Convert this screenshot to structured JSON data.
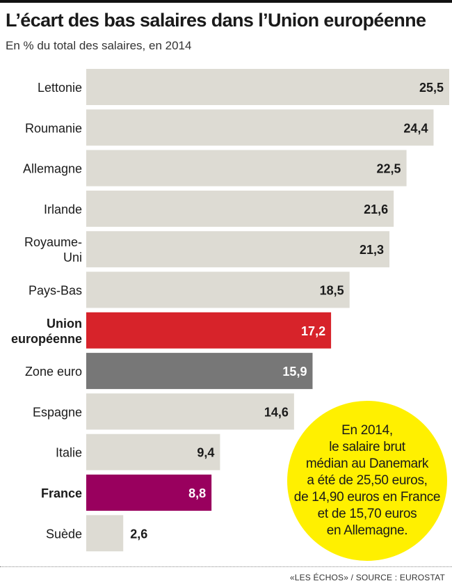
{
  "title": "L’écart des bas salaires dans l’Union européenne",
  "subtitle": "En % du total des salaires, en 2014",
  "chart_data": {
    "type": "bar",
    "orientation": "horizontal",
    "title": "L’écart des bas salaires dans l’Union européenne",
    "subtitle": "En % du total des salaires, en 2014",
    "categories": [
      {
        "lines": [
          "Lettonie"
        ],
        "bold": false
      },
      {
        "lines": [
          "Roumanie"
        ],
        "bold": false
      },
      {
        "lines": [
          "Allemagne"
        ],
        "bold": false
      },
      {
        "lines": [
          "Irlande"
        ],
        "bold": false
      },
      {
        "lines": [
          "Royaume-",
          "Uni"
        ],
        "bold": false
      },
      {
        "lines": [
          "Pays-Bas"
        ],
        "bold": false
      },
      {
        "lines": [
          "Union",
          "européenne"
        ],
        "bold": true
      },
      {
        "lines": [
          "Zone euro"
        ],
        "bold": false
      },
      {
        "lines": [
          "Espagne"
        ],
        "bold": false
      },
      {
        "lines": [
          "Italie"
        ],
        "bold": false
      },
      {
        "lines": [
          "France"
        ],
        "bold": true
      },
      {
        "lines": [
          "Suède"
        ],
        "bold": false
      }
    ],
    "values": [
      25.5,
      24.4,
      22.5,
      21.6,
      21.3,
      18.5,
      17.2,
      15.9,
      14.6,
      9.4,
      8.8,
      2.6
    ],
    "value_labels": [
      "25,5",
      "24,4",
      "22,5",
      "21,6",
      "21,3",
      "18,5",
      "17,2",
      "15,9",
      "14,6",
      "9,4",
      "8,8",
      "2,6"
    ],
    "colors": [
      "#dddbd3",
      "#dddbd3",
      "#dddbd3",
      "#dddbd3",
      "#dddbd3",
      "#dddbd3",
      "#d7232a",
      "#777777",
      "#dddbd3",
      "#dddbd3",
      "#99005e",
      "#dddbd3"
    ],
    "label_colors": [
      "#1a1a1a",
      "#1a1a1a",
      "#1a1a1a",
      "#1a1a1a",
      "#1a1a1a",
      "#1a1a1a",
      "#ffffff",
      "#ffffff",
      "#1a1a1a",
      "#1a1a1a",
      "#ffffff",
      "#1a1a1a"
    ],
    "xlim": [
      0,
      25.5
    ],
    "grid": false,
    "legend": "none"
  },
  "annotation": {
    "lines": [
      "En 2014,",
      "le salaire brut",
      "médian au Danemark",
      "a été de 25,50 euros,",
      "de 14,90 euros en France",
      "et de 15,70 euros",
      "en Allemagne."
    ],
    "color": "#fff000"
  },
  "source": "«LES ÉCHOS» / SOURCE : EUROSTAT"
}
